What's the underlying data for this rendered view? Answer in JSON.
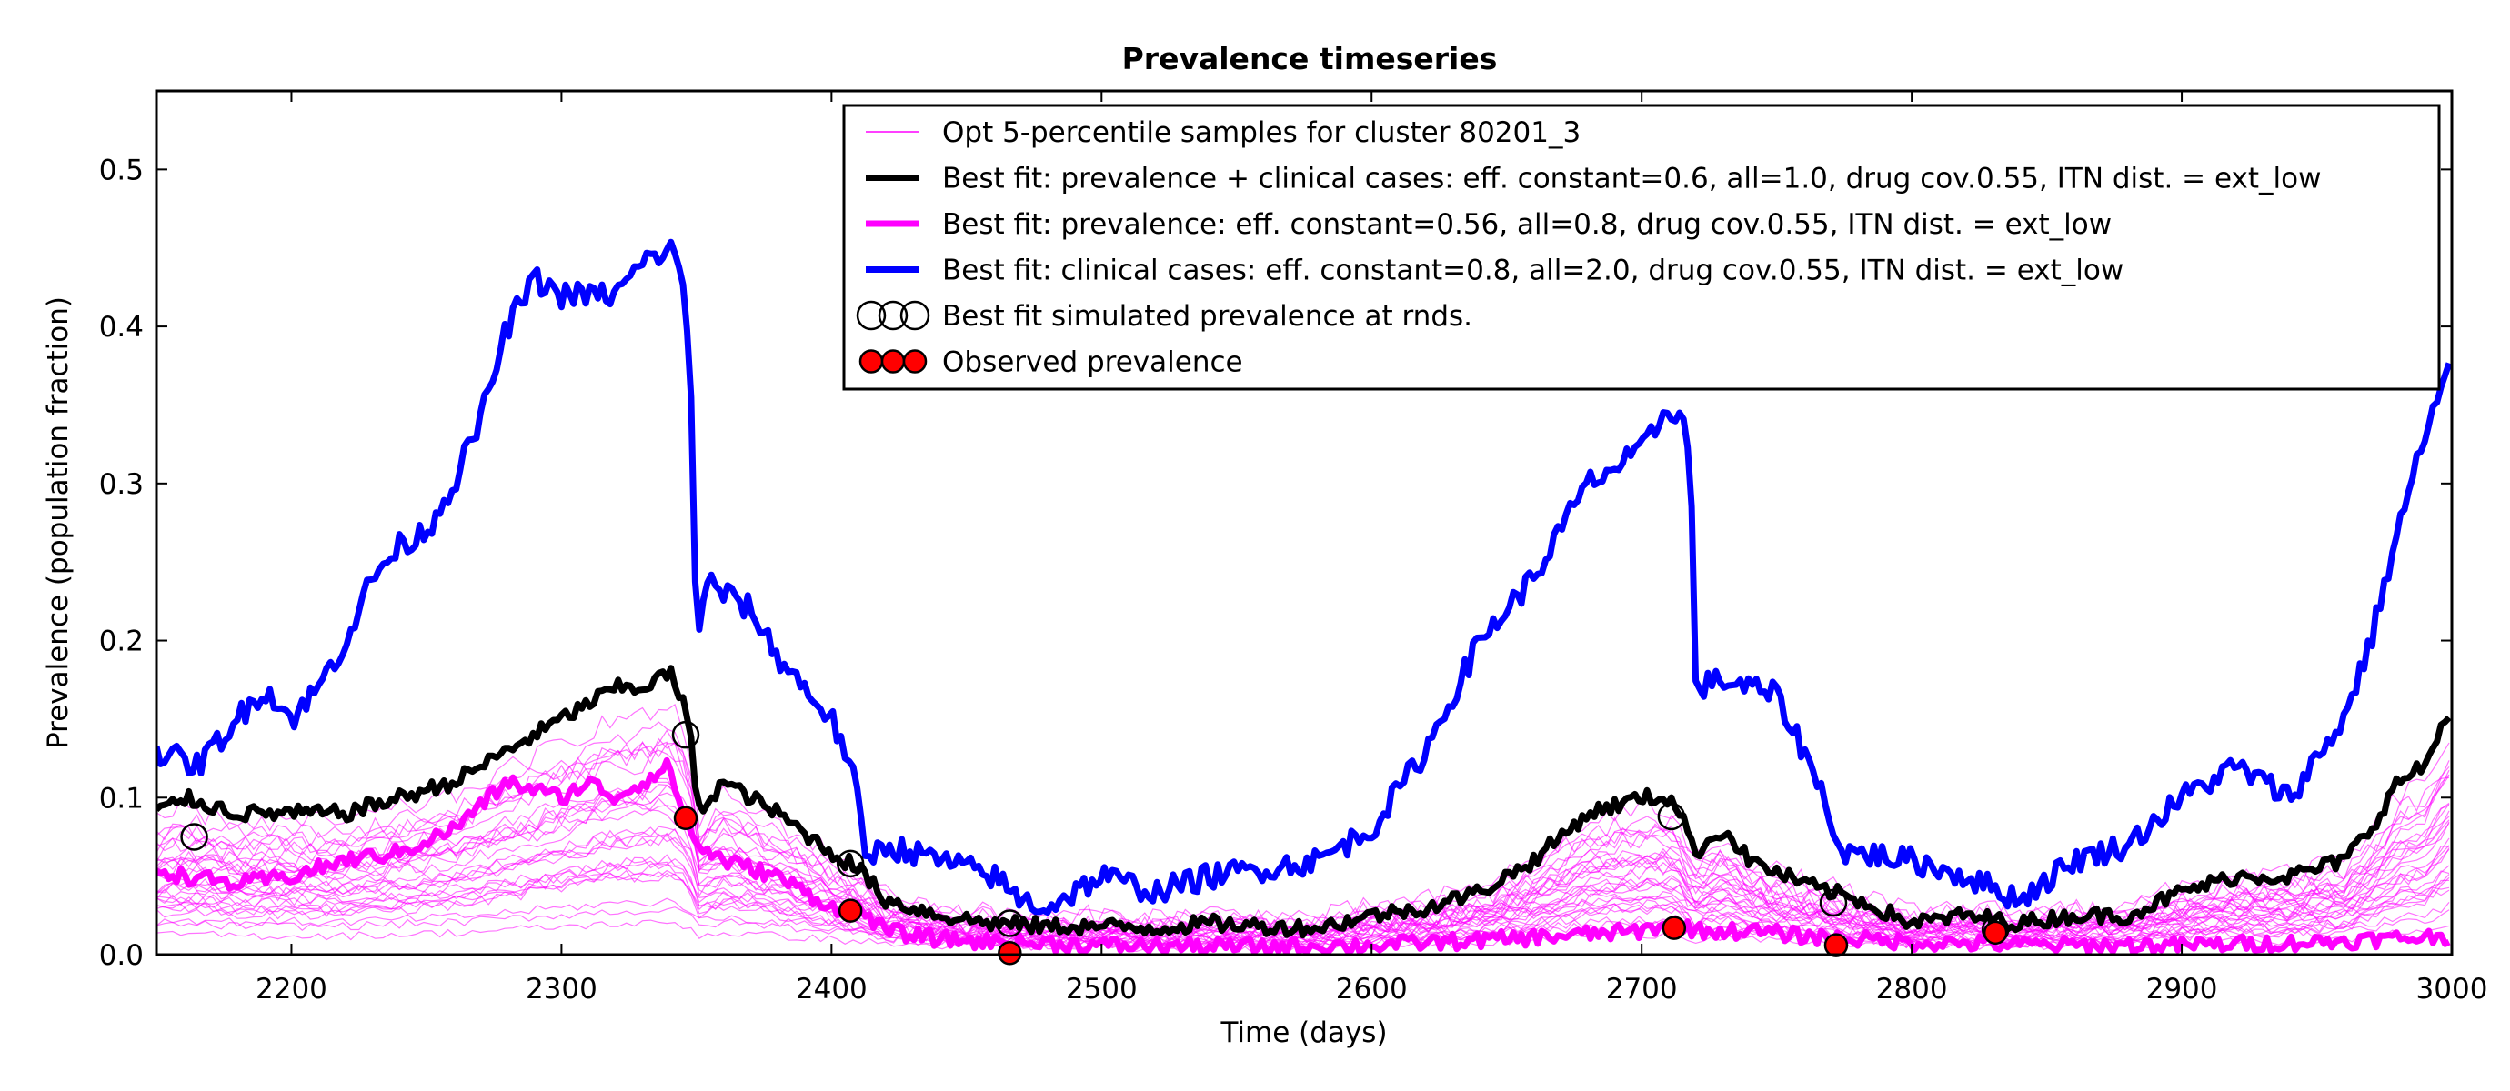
{
  "chart_data": {
    "type": "line",
    "title": "Prevalence timeseries",
    "xlabel": "Time (days)",
    "ylabel": "Prevalence (population fraction)",
    "xlim": [
      2150,
      3000
    ],
    "ylim": [
      0.0,
      0.55
    ],
    "xticks": [
      2200,
      2300,
      2400,
      2500,
      2600,
      2700,
      2800,
      2900,
      3000
    ],
    "yticks": [
      0.0,
      0.1,
      0.2,
      0.3,
      0.4,
      0.5
    ],
    "grid": false,
    "legend_position": "top-right",
    "legend": [
      {
        "label": "Opt 5-percentile samples for cluster 80201_3",
        "kind": "thin-line",
        "color": "#ff00ff"
      },
      {
        "label": "Best fit: prevalence + clinical cases: eff. constant=0.6, all=1.0, drug cov.0.55, ITN dist. = ext_low",
        "kind": "line",
        "color": "#000000"
      },
      {
        "label": "Best fit: prevalence: eff. constant=0.56, all=0.8, drug cov.0.55, ITN dist. = ext_low",
        "kind": "line",
        "color": "#ff00ff"
      },
      {
        "label": "Best fit: clinical cases: eff. constant=0.8, all=2.0, drug cov.0.55, ITN dist. = ext_low",
        "kind": "line",
        "color": "#0000ff"
      },
      {
        "label": "Best fit simulated prevalence at rnds.",
        "kind": "open-circles",
        "color": "#000000"
      },
      {
        "label": "Observed prevalence",
        "kind": "filled-circles",
        "color": "#ff0000"
      }
    ],
    "series": [
      {
        "label_ref": 3,
        "color": "#0000ff",
        "x": [
          2150,
          2165,
          2175,
          2190,
          2200,
          2210,
          2220,
          2230,
          2240,
          2250,
          2260,
          2270,
          2280,
          2290,
          2300,
          2310,
          2320,
          2330,
          2340,
          2345,
          2348,
          2350,
          2355,
          2360,
          2370,
          2380,
          2390,
          2400,
          2405,
          2410,
          2412,
          2420,
          2440,
          2460,
          2470,
          2480,
          2500,
          2520,
          2540,
          2560,
          2580,
          2600,
          2620,
          2640,
          2660,
          2680,
          2700,
          2710,
          2715,
          2718,
          2720,
          2730,
          2740,
          2750,
          2760,
          2770,
          2773,
          2780,
          2800,
          2820,
          2840,
          2860,
          2880,
          2900,
          2920,
          2940,
          2960,
          2970,
          2980,
          2990,
          3000
        ],
        "y": [
          0.13,
          0.12,
          0.14,
          0.17,
          0.15,
          0.17,
          0.2,
          0.24,
          0.26,
          0.27,
          0.3,
          0.34,
          0.4,
          0.43,
          0.42,
          0.42,
          0.42,
          0.44,
          0.45,
          0.43,
          0.36,
          0.2,
          0.24,
          0.23,
          0.22,
          0.19,
          0.17,
          0.15,
          0.13,
          0.1,
          0.06,
          0.07,
          0.06,
          0.05,
          0.035,
          0.03,
          0.05,
          0.04,
          0.05,
          0.055,
          0.06,
          0.08,
          0.13,
          0.2,
          0.24,
          0.3,
          0.32,
          0.35,
          0.34,
          0.32,
          0.17,
          0.175,
          0.17,
          0.165,
          0.13,
          0.09,
          0.065,
          0.065,
          0.06,
          0.05,
          0.035,
          0.06,
          0.07,
          0.1,
          0.12,
          0.1,
          0.15,
          0.2,
          0.27,
          0.33,
          0.38
        ]
      },
      {
        "label_ref": 1,
        "color": "#000000",
        "x": [
          2150,
          2160,
          2180,
          2200,
          2220,
          2240,
          2260,
          2280,
          2300,
          2310,
          2320,
          2330,
          2340,
          2345,
          2348,
          2350,
          2355,
          2360,
          2380,
          2400,
          2410,
          2420,
          2440,
          2460,
          2480,
          2500,
          2520,
          2540,
          2560,
          2580,
          2600,
          2620,
          2640,
          2660,
          2680,
          2700,
          2710,
          2715,
          2718,
          2720,
          2730,
          2740,
          2760,
          2780,
          2800,
          2820,
          2840,
          2860,
          2880,
          2900,
          2920,
          2940,
          2960,
          2970,
          2980,
          2990,
          3000
        ],
        "y": [
          0.09,
          0.1,
          0.09,
          0.09,
          0.09,
          0.1,
          0.11,
          0.13,
          0.15,
          0.16,
          0.17,
          0.17,
          0.18,
          0.16,
          0.14,
          0.09,
          0.1,
          0.11,
          0.09,
          0.065,
          0.055,
          0.035,
          0.025,
          0.02,
          0.018,
          0.018,
          0.017,
          0.02,
          0.018,
          0.017,
          0.025,
          0.03,
          0.04,
          0.06,
          0.09,
          0.1,
          0.1,
          0.09,
          0.07,
          0.065,
          0.08,
          0.06,
          0.045,
          0.035,
          0.02,
          0.025,
          0.02,
          0.025,
          0.025,
          0.04,
          0.05,
          0.05,
          0.06,
          0.08,
          0.11,
          0.12,
          0.16
        ]
      },
      {
        "label_ref": 2,
        "color": "#ff00ff",
        "x": [
          2150,
          2160,
          2180,
          2200,
          2220,
          2240,
          2260,
          2280,
          2300,
          2310,
          2320,
          2330,
          2340,
          2345,
          2350,
          2360,
          2380,
          2400,
          2410,
          2420,
          2440,
          2460,
          2500,
          2550,
          2600,
          2650,
          2700,
          2710,
          2715,
          2720,
          2740,
          2760,
          2780,
          2800,
          2850,
          2900,
          2950,
          3000
        ],
        "y": [
          0.055,
          0.05,
          0.045,
          0.05,
          0.06,
          0.065,
          0.08,
          0.11,
          0.1,
          0.11,
          0.1,
          0.11,
          0.12,
          0.09,
          0.07,
          0.06,
          0.05,
          0.03,
          0.03,
          0.015,
          0.01,
          0.008,
          0.006,
          0.005,
          0.006,
          0.01,
          0.015,
          0.02,
          0.02,
          0.015,
          0.015,
          0.012,
          0.01,
          0.008,
          0.006,
          0.006,
          0.008,
          0.012
        ]
      }
    ],
    "simulated_points": [
      {
        "x": 2164,
        "y": 0.075
      },
      {
        "x": 2346,
        "y": 0.14
      },
      {
        "x": 2407,
        "y": 0.058
      },
      {
        "x": 2466,
        "y": 0.02
      },
      {
        "x": 2711,
        "y": 0.088
      },
      {
        "x": 2771,
        "y": 0.033
      },
      {
        "x": 2831,
        "y": 0.016
      }
    ],
    "observed_points": [
      {
        "x": 2346,
        "y": 0.087
      },
      {
        "x": 2407,
        "y": 0.028
      },
      {
        "x": 2466,
        "y": 0.001
      },
      {
        "x": 2712,
        "y": 0.017
      },
      {
        "x": 2772,
        "y": 0.006
      },
      {
        "x": 2831,
        "y": 0.014
      }
    ],
    "sample_bundle": {
      "count": 30,
      "color": "#ff00ff",
      "description": "thin magenta sample trajectories"
    }
  }
}
